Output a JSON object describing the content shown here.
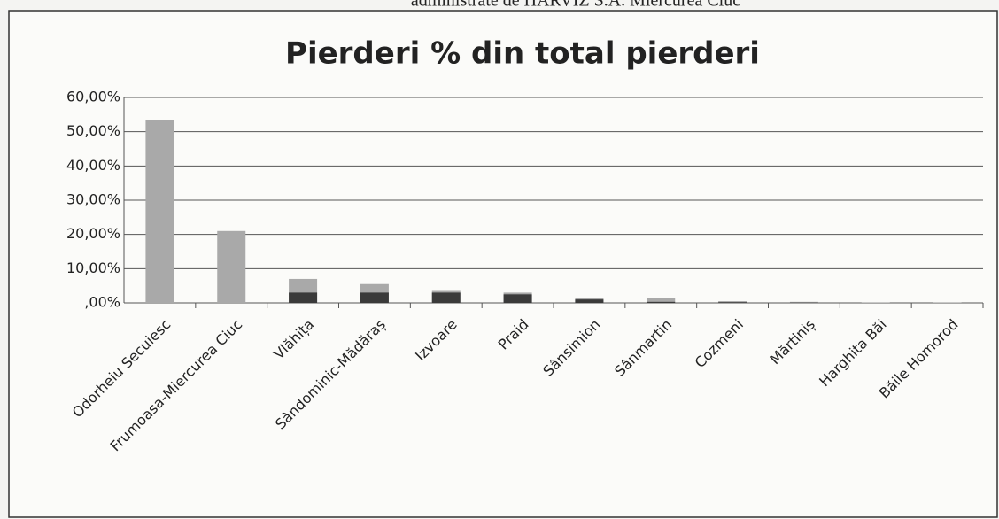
{
  "header": "administrate de HARVIZ S.A. Miercurea Ciuc",
  "chart_data": {
    "type": "bar",
    "title": "Pierderi % din total pierderi",
    "categories": [
      "Odorheiu Secuiesc",
      "Frumoasa-Miercurea Ciuc",
      "Vlăhița",
      "Sândominic-Mădăraș",
      "Izvoare",
      "Praid",
      "Sânsimion",
      "Sânmartin",
      "Cozmeni",
      "Mărtiniș",
      "Harghita Băi",
      "Băile Homorod"
    ],
    "series": [
      {
        "color": "#a9a9a9",
        "values": [
          53.5,
          21,
          7,
          5.5,
          3.5,
          3,
          1.5,
          1.5,
          0.5,
          0.3,
          0.1,
          0.1
        ]
      },
      {
        "color": "#3a3a3a",
        "values": [
          0,
          0,
          3,
          3,
          3,
          2.5,
          1,
          0.3,
          0.2,
          0.1,
          0,
          0
        ]
      }
    ],
    "ylim": [
      0,
      60
    ],
    "yticks": [
      {
        "value": 0,
        "label": ",00%"
      },
      {
        "value": 10,
        "label": "10,00%"
      },
      {
        "value": 20,
        "label": "20,00%"
      },
      {
        "value": 30,
        "label": "30,00%"
      },
      {
        "value": 40,
        "label": "40,00%"
      },
      {
        "value": 50,
        "label": "50,00%"
      },
      {
        "value": 60,
        "label": "60,00%"
      }
    ],
    "grid": true
  }
}
